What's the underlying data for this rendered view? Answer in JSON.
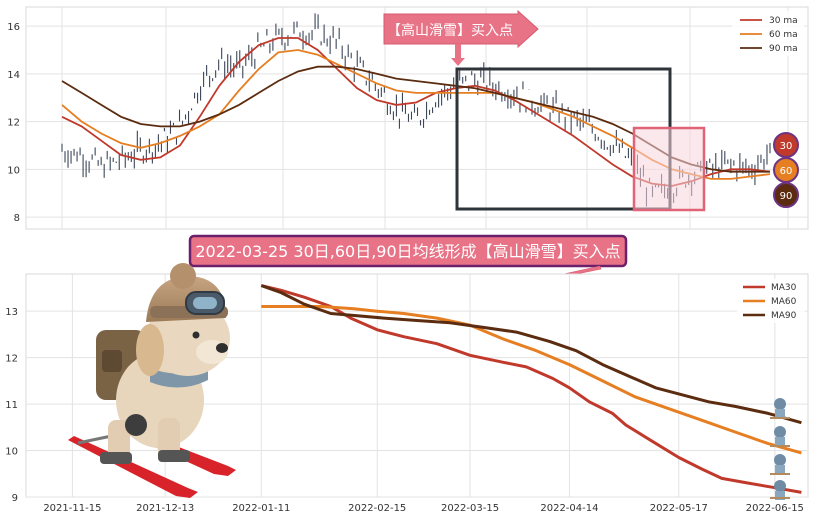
{
  "chart_data": [
    {
      "type": "line",
      "panel": "top",
      "ylim": [
        7.5,
        16.8
      ],
      "yticks": [
        8,
        10,
        12,
        14,
        16
      ],
      "grid": true,
      "legend_position": "top-right",
      "series": [
        {
          "name": "30 ma",
          "color": "#c0392b",
          "values": [
            12.2,
            11.8,
            11.2,
            10.6,
            10.4,
            10.5,
            11.0,
            12.2,
            13.5,
            14.5,
            15.2,
            15.5,
            15.5,
            15.0,
            14.2,
            13.4,
            12.9,
            12.7,
            12.8,
            13.2,
            13.4,
            13.5,
            13.3,
            12.9,
            12.4,
            11.9,
            11.4,
            10.8,
            10.2,
            9.7,
            9.4,
            9.3,
            9.5,
            9.8,
            10.0,
            10.0,
            9.9
          ]
        },
        {
          "name": "60 ma",
          "color": "#e67e22",
          "values": [
            12.7,
            12.0,
            11.5,
            11.1,
            10.9,
            11.1,
            11.4,
            11.8,
            12.3,
            13.3,
            14.2,
            14.9,
            15.0,
            14.8,
            14.4,
            14.0,
            13.6,
            13.3,
            13.2,
            13.2,
            13.2,
            13.2,
            13.2,
            13.0,
            12.8,
            12.5,
            12.2,
            11.8,
            11.4,
            10.9,
            10.4,
            10.0,
            9.8,
            9.6,
            9.6,
            9.7,
            9.8
          ]
        },
        {
          "name": "90 ma",
          "color": "#5b2c0f",
          "values": [
            13.7,
            13.2,
            12.7,
            12.2,
            11.9,
            11.8,
            11.8,
            12.0,
            12.3,
            12.7,
            13.2,
            13.7,
            14.1,
            14.3,
            14.3,
            14.2,
            14.0,
            13.8,
            13.7,
            13.6,
            13.5,
            13.4,
            13.2,
            13.0,
            12.8,
            12.6,
            12.4,
            12.2,
            11.9,
            11.5,
            11.0,
            10.5,
            10.2,
            10.0,
            9.9,
            9.9,
            9.9
          ]
        }
      ],
      "price_path": [
        10.8,
        10.6,
        10.1,
        10.4,
        10.8,
        11.1,
        11.8,
        13.5,
        14.5,
        14.2,
        15.0,
        15.5,
        15.8,
        15.7,
        15.3,
        14.3,
        13.5,
        12.5,
        12.0,
        13.0,
        13.5,
        13.8,
        13.5,
        13.2,
        12.8,
        12.5,
        12.1,
        11.7,
        11.0,
        10.3,
        8.9,
        9.3,
        9.8,
        10.0,
        10.2,
        10.0,
        10.7
      ],
      "annotation_top": "【高山滑雪】买入点",
      "badges": [
        {
          "label": "30",
          "color": "#c0392b"
        },
        {
          "label": "60",
          "color": "#e67e22"
        },
        {
          "label": "90",
          "color": "#5b2c0f"
        }
      ]
    },
    {
      "type": "line",
      "panel": "bottom",
      "ylim": [
        9.0,
        13.8
      ],
      "yticks": [
        9,
        10,
        11,
        12,
        13
      ],
      "grid": true,
      "legend_position": "top-right",
      "x_tick_labels": [
        "2021-11-15",
        "2021-12-13",
        "2022-01-11",
        "2022-02-15",
        "2022-03-15",
        "2022-04-14",
        "2022-05-17",
        "2022-06-15"
      ],
      "x_tick_days": [
        0,
        28,
        57,
        92,
        120,
        150,
        183,
        212
      ],
      "x_domain_days": [
        -14,
        222
      ],
      "series": [
        {
          "name": "MA30",
          "color": "#c0392b",
          "points": [
            [
              57,
              13.55
            ],
            [
              63,
              13.45
            ],
            [
              70,
              13.3
            ],
            [
              78,
              13.1
            ],
            [
              84,
              12.85
            ],
            [
              92,
              12.6
            ],
            [
              100,
              12.45
            ],
            [
              110,
              12.3
            ],
            [
              120,
              12.05
            ],
            [
              130,
              11.9
            ],
            [
              137,
              11.8
            ],
            [
              145,
              11.55
            ],
            [
              150,
              11.35
            ],
            [
              156,
              11.05
            ],
            [
              163,
              10.8
            ],
            [
              167,
              10.55
            ],
            [
              175,
              10.2
            ],
            [
              183,
              9.85
            ],
            [
              190,
              9.6
            ],
            [
              196,
              9.4
            ],
            [
              204,
              9.3
            ],
            [
              212,
              9.2
            ],
            [
              220,
              9.1
            ]
          ]
        },
        {
          "name": "MA60",
          "color": "#e67e22",
          "points": [
            [
              57,
              13.1
            ],
            [
              65,
              13.1
            ],
            [
              75,
              13.1
            ],
            [
              85,
              13.05
            ],
            [
              92,
              13.0
            ],
            [
              100,
              12.95
            ],
            [
              110,
              12.85
            ],
            [
              120,
              12.7
            ],
            [
              130,
              12.4
            ],
            [
              140,
              12.15
            ],
            [
              150,
              11.85
            ],
            [
              160,
              11.5
            ],
            [
              170,
              11.15
            ],
            [
              180,
              10.9
            ],
            [
              190,
              10.65
            ],
            [
              200,
              10.4
            ],
            [
              210,
              10.15
            ],
            [
              220,
              9.95
            ]
          ]
        },
        {
          "name": "MA90",
          "color": "#5b2c0f",
          "points": [
            [
              57,
              13.55
            ],
            [
              63,
              13.4
            ],
            [
              70,
              13.15
            ],
            [
              78,
              12.95
            ],
            [
              86,
              12.9
            ],
            [
              94,
              12.85
            ],
            [
              104,
              12.8
            ],
            [
              114,
              12.75
            ],
            [
              124,
              12.65
            ],
            [
              134,
              12.55
            ],
            [
              144,
              12.35
            ],
            [
              152,
              12.15
            ],
            [
              160,
              11.85
            ],
            [
              168,
              11.6
            ],
            [
              176,
              11.35
            ],
            [
              184,
              11.2
            ],
            [
              192,
              11.05
            ],
            [
              200,
              10.95
            ],
            [
              210,
              10.8
            ],
            [
              220,
              10.6
            ]
          ]
        }
      ],
      "annotation_main": "2022-03-25 30日,60日,90日均线形成【高山滑雪】买入点"
    }
  ]
}
